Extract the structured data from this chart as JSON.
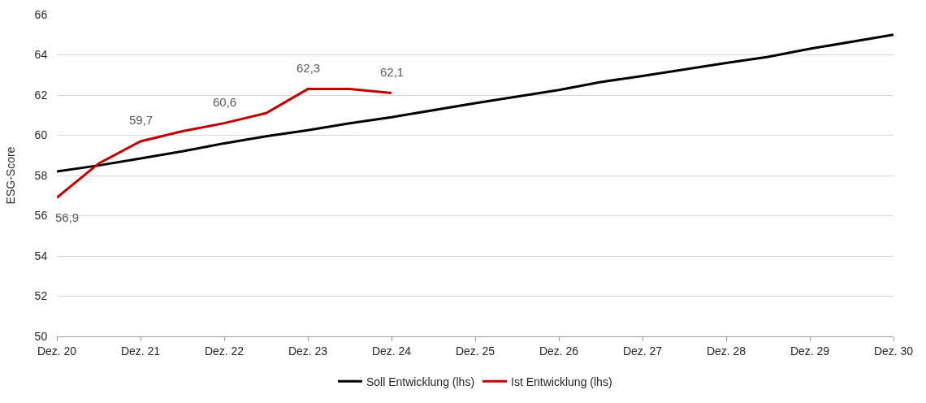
{
  "chart_data": {
    "type": "line",
    "ylabel": "ESG-Score",
    "x": [
      20,
      20.5,
      21,
      21.5,
      22,
      22.5,
      23,
      23.5,
      24,
      25,
      26,
      26.5,
      27,
      28,
      28.5,
      29,
      30
    ],
    "series": [
      {
        "name": "Soll Entwicklung (lhs)",
        "color": "#000000",
        "values": [
          58.2,
          58.5,
          58.85,
          59.2,
          59.6,
          59.95,
          60.25,
          60.6,
          60.9,
          61.6,
          62.25,
          62.65,
          62.95,
          63.6,
          63.9,
          64.3,
          65.0
        ]
      },
      {
        "name": "Ist Entwicklung (lhs)",
        "color": "#c00000",
        "values": [
          56.9,
          58.6,
          59.7,
          60.2,
          60.6,
          61.1,
          62.3,
          62.3,
          62.1,
          null,
          null,
          null,
          null,
          null,
          null,
          null,
          null
        ]
      }
    ],
    "annotations": [
      {
        "text": "56,9",
        "x": 20,
        "y": 56.9
      },
      {
        "text": "59,7",
        "x": 21,
        "y": 59.7
      },
      {
        "text": "60,6",
        "x": 22,
        "y": 60.6
      },
      {
        "text": "62,3",
        "x": 23,
        "y": 62.3
      },
      {
        "text": "62,1",
        "x": 24,
        "y": 62.1
      }
    ],
    "xlim": [
      20,
      30
    ],
    "xticks": [
      {
        "value": 20,
        "label": "Dez. 20"
      },
      {
        "value": 21,
        "label": "Dez. 21"
      },
      {
        "value": 22,
        "label": "Dez. 22"
      },
      {
        "value": 23,
        "label": "Dez. 23"
      },
      {
        "value": 24,
        "label": "Dez. 24"
      },
      {
        "value": 25,
        "label": "Dez. 25"
      },
      {
        "value": 26,
        "label": "Dez. 26"
      },
      {
        "value": 27,
        "label": "Dez. 27"
      },
      {
        "value": 28,
        "label": "Dez. 28"
      },
      {
        "value": 29,
        "label": "Dez. 29"
      },
      {
        "value": 30,
        "label": "Dez. 30"
      }
    ],
    "ylim": [
      50,
      66
    ],
    "yticks": [
      50,
      52,
      54,
      56,
      58,
      60,
      62,
      64,
      66
    ],
    "grid": "y",
    "legend": "bottom",
    "marker": "none",
    "line_style": "solid"
  }
}
